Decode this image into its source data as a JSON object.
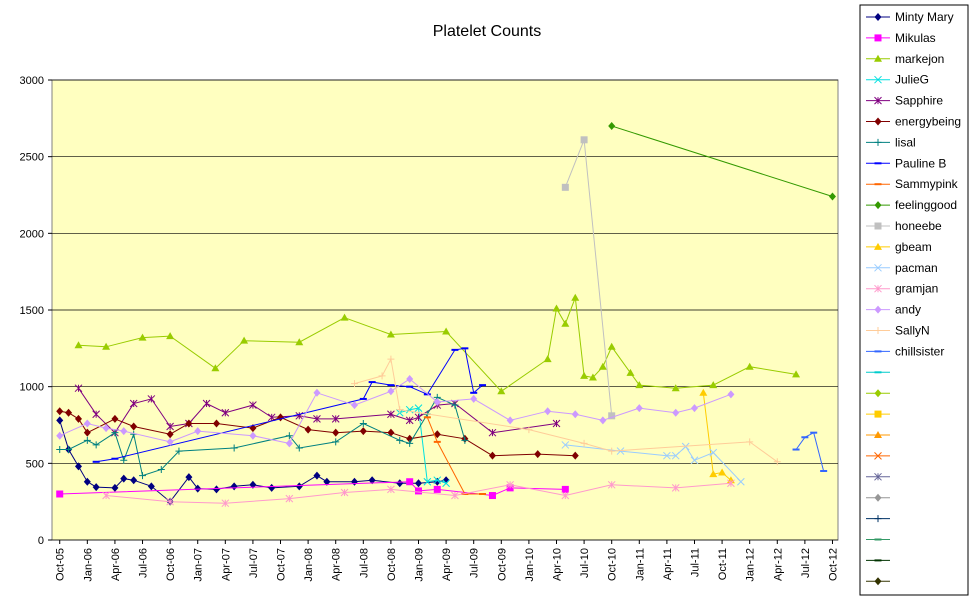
{
  "chart_data": {
    "type": "line",
    "title": "Platelet Counts",
    "xlim": [
      2005.68,
      2012.8
    ],
    "ylim": [
      0,
      3000
    ],
    "yticks": [
      0,
      500,
      1000,
      1500,
      2000,
      2500,
      3000
    ],
    "grid": true,
    "xticks": [
      {
        "value": 2005.75,
        "label": "Oct-05"
      },
      {
        "value": 2006,
        "label": "Jan-06"
      },
      {
        "value": 2006.25,
        "label": "Apr-06"
      },
      {
        "value": 2006.5,
        "label": "Jul-06"
      },
      {
        "value": 2006.75,
        "label": "Oct-06"
      },
      {
        "value": 2007,
        "label": "Jan-07"
      },
      {
        "value": 2007.25,
        "label": "Apr-07"
      },
      {
        "value": 2007.5,
        "label": "Jul-07"
      },
      {
        "value": 2007.75,
        "label": "Oct-07"
      },
      {
        "value": 2008,
        "label": "Jan-08"
      },
      {
        "value": 2008.25,
        "label": "Apr-08"
      },
      {
        "value": 2008.5,
        "label": "Jul-08"
      },
      {
        "value": 2008.75,
        "label": "Oct-08"
      },
      {
        "value": 2009,
        "label": "Jan-09"
      },
      {
        "value": 2009.25,
        "label": "Apr-09"
      },
      {
        "value": 2009.5,
        "label": "Jul-09"
      },
      {
        "value": 2009.75,
        "label": "Oct-09"
      },
      {
        "value": 2010,
        "label": "Jan-10"
      },
      {
        "value": 2010.25,
        "label": "Apr-10"
      },
      {
        "value": 2010.5,
        "label": "Jul-10"
      },
      {
        "value": 2010.75,
        "label": "Oct-10"
      },
      {
        "value": 2011,
        "label": "Jan-11"
      },
      {
        "value": 2011.25,
        "label": "Apr-11"
      },
      {
        "value": 2011.5,
        "label": "Jul-11"
      },
      {
        "value": 2011.75,
        "label": "Oct-11"
      },
      {
        "value": 2012,
        "label": "Jan-12"
      },
      {
        "value": 2012.25,
        "label": "Apr-12"
      },
      {
        "value": 2012.5,
        "label": "Jul-12"
      },
      {
        "value": 2012.75,
        "label": "Oct-12"
      }
    ],
    "legend": "right",
    "series": [
      {
        "name": "Minty Mary",
        "color": "#000080",
        "marker": "diamond",
        "x": [
          2005.75,
          2005.83,
          2005.92,
          2006.0,
          2006.08,
          2006.25,
          2006.33,
          2006.42,
          2006.58,
          2006.75,
          2006.92,
          2007.0,
          2007.17,
          2007.33,
          2007.5,
          2007.67,
          2007.92,
          2008.08,
          2008.17,
          2008.42,
          2008.58,
          2008.83,
          2009.0,
          2009.17,
          2009.25
        ],
        "values": [
          780,
          590,
          480,
          380,
          345,
          340,
          400,
          390,
          350,
          250,
          410,
          335,
          330,
          350,
          360,
          340,
          350,
          420,
          380,
          380,
          390,
          370,
          370,
          380,
          390
        ]
      },
      {
        "name": "Mikulas",
        "color": "#ff00ff",
        "marker": "square",
        "x": [
          2005.75,
          2008.92,
          2009.0,
          2009.17,
          2009.67,
          2009.83,
          2010.33
        ],
        "values": [
          300,
          380,
          320,
          330,
          290,
          340,
          330
        ]
      },
      {
        "name": "markejon",
        "color": "#99cc00",
        "marker": "triangle",
        "x": [
          2005.92,
          2006.17,
          2006.5,
          2006.75,
          2007.16,
          2007.42,
          2007.92,
          2008.33,
          2008.75,
          2009.25,
          2009.75,
          2010.17,
          2010.25,
          2010.33,
          2010.42,
          2010.5,
          2010.58,
          2010.67,
          2010.75,
          2010.92,
          2011.0,
          2011.33,
          2011.67,
          2012.0,
          2012.42
        ],
        "values": [
          1270,
          1260,
          1320,
          1330,
          1120,
          1300,
          1290,
          1450,
          1340,
          1360,
          970,
          1180,
          1510,
          1410,
          1580,
          1070,
          1060,
          1130,
          1260,
          1090,
          1010,
          990,
          1010,
          1130,
          1080
        ]
      },
      {
        "name": "JulieG",
        "color": "#00e0e0",
        "marker": "x",
        "x": [
          2008.83,
          2008.92,
          2009.0,
          2009.08,
          2009.17,
          2009.25
        ],
        "values": [
          830,
          850,
          860,
          380,
          390,
          370
        ]
      },
      {
        "name": "Sapphire",
        "color": "#800080",
        "marker": "star",
        "x": [
          2005.92,
          2006.08,
          2006.25,
          2006.42,
          2006.58,
          2006.75,
          2006.92,
          2007.08,
          2007.25,
          2007.5,
          2007.67,
          2007.92,
          2008.08,
          2008.25,
          2008.75,
          2008.92,
          2009.0,
          2009.17,
          2009.33,
          2009.67,
          2010.25
        ],
        "values": [
          990,
          820,
          700,
          890,
          920,
          740,
          760,
          890,
          830,
          880,
          800,
          810,
          790,
          790,
          820,
          780,
          800,
          880,
          890,
          700,
          760
        ]
      },
      {
        "name": "energybeing",
        "color": "#800000",
        "marker": "diamond",
        "x": [
          2005.75,
          2005.83,
          2005.92,
          2006.0,
          2006.25,
          2006.42,
          2006.75,
          2006.92,
          2007.17,
          2007.5,
          2007.75,
          2008.0,
          2008.25,
          2008.5,
          2008.75,
          2008.92,
          2009.17,
          2009.42,
          2009.67,
          2010.08,
          2010.42
        ],
        "values": [
          840,
          830,
          790,
          700,
          790,
          740,
          690,
          760,
          760,
          730,
          800,
          720,
          700,
          710,
          700,
          660,
          690,
          660,
          550,
          560,
          550
        ]
      },
      {
        "name": "lisal",
        "color": "#008080",
        "marker": "plus",
        "x": [
          2005.75,
          2005.83,
          2006.0,
          2006.08,
          2006.25,
          2006.33,
          2006.42,
          2006.5,
          2006.67,
          2006.83,
          2007.33,
          2007.83,
          2007.92,
          2008.25,
          2008.5,
          2008.83,
          2008.92,
          2009.08,
          2009.17,
          2009.33,
          2009.42
        ],
        "values": [
          590,
          590,
          650,
          620,
          700,
          520,
          690,
          420,
          460,
          580,
          600,
          680,
          600,
          640,
          760,
          650,
          630,
          820,
          930,
          880,
          650
        ]
      },
      {
        "name": "Pauline B",
        "color": "#0000ff",
        "marker": "dash",
        "x": [
          2006.08,
          2006.25,
          2008.5,
          2008.58,
          2008.75,
          2008.92,
          2009.08,
          2009.33,
          2009.42,
          2009.5,
          2009.58
        ],
        "values": [
          510,
          530,
          920,
          1030,
          1010,
          1000,
          950,
          1240,
          1250,
          960,
          1010
        ]
      },
      {
        "name": "Sammypink",
        "color": "#ff6600",
        "marker": "dash",
        "x": [
          2009.08,
          2009.17,
          2009.42,
          2009.58
        ],
        "values": [
          800,
          640,
          300,
          300
        ]
      },
      {
        "name": "feelinggood",
        "color": "#339900",
        "marker": "diamond",
        "x": [
          2010.75,
          2012.75
        ],
        "values": [
          2700,
          2240
        ]
      },
      {
        "name": "honeebe",
        "color": "#c0c0c0",
        "marker": "square",
        "x": [
          2010.33,
          2010.5,
          2010.75
        ],
        "values": [
          2300,
          2610,
          810
        ]
      },
      {
        "name": "gbeam",
        "color": "#ffcc00",
        "marker": "triangle",
        "x": [
          2011.58,
          2011.67,
          2011.75,
          2011.83
        ],
        "values": [
          960,
          430,
          440,
          390
        ]
      },
      {
        "name": "pacman",
        "color": "#99ccff",
        "marker": "x",
        "x": [
          2010.33,
          2010.83,
          2011.25,
          2011.33,
          2011.42,
          2011.5,
          2011.67,
          2011.92
        ],
        "values": [
          620,
          580,
          550,
          550,
          610,
          520,
          570,
          380
        ]
      },
      {
        "name": "gramjan",
        "color": "#ff99cc",
        "marker": "star",
        "x": [
          2006.17,
          2006.75,
          2007.25,
          2007.83,
          2008.33,
          2008.75,
          2009.33,
          2009.83,
          2010.33,
          2010.75,
          2011.33,
          2011.83
        ],
        "values": [
          290,
          250,
          240,
          270,
          310,
          330,
          290,
          360,
          290,
          360,
          340,
          370
        ]
      },
      {
        "name": "andy",
        "color": "#cc99ff",
        "marker": "diamond",
        "x": [
          2005.75,
          2006.0,
          2006.17,
          2006.33,
          2006.75,
          2007.0,
          2007.5,
          2007.83,
          2008.08,
          2008.42,
          2008.75,
          2008.92,
          2009.17,
          2009.5,
          2009.83,
          2010.17,
          2010.42,
          2010.67,
          2011.0,
          2011.33,
          2011.5,
          2011.83
        ],
        "values": [
          680,
          760,
          730,
          710,
          640,
          710,
          680,
          630,
          960,
          880,
          970,
          1050,
          900,
          920,
          780,
          840,
          820,
          780,
          860,
          830,
          860,
          950
        ]
      },
      {
        "name": "SallyN",
        "color": "#ffcc99",
        "marker": "plus",
        "x": [
          2008.42,
          2008.67,
          2008.75,
          2008.83,
          2010.0,
          2010.5,
          2010.75,
          2012.0,
          2012.25
        ],
        "values": [
          1020,
          1070,
          1180,
          850,
          720,
          630,
          580,
          640,
          510
        ]
      },
      {
        "name": "chillsister",
        "color": "#3366ff",
        "marker": "dash",
        "x": [
          2012.42,
          2012.5,
          2012.58,
          2012.67
        ],
        "values": [
          590,
          670,
          700,
          450
        ]
      }
    ]
  }
}
